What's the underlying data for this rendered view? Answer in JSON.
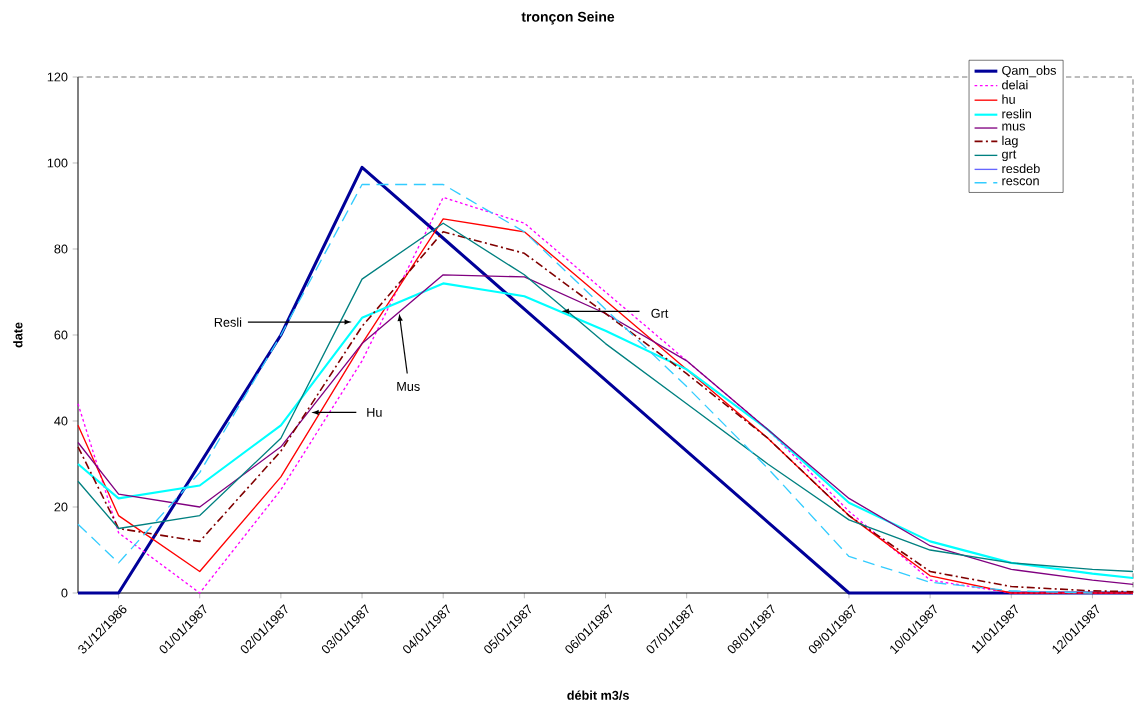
{
  "chart_data": {
    "type": "line",
    "title": "tronçon Seine",
    "xlabel": "débit m3/s",
    "ylabel": "date",
    "x": [
      "1986-12-30T12:00",
      "1986-12-31",
      "1987-01-01",
      "1987-01-02",
      "1987-01-03",
      "1987-01-04",
      "1987-01-05",
      "1987-01-06",
      "1987-01-07",
      "1987-01-08",
      "1987-01-09",
      "1987-01-10",
      "1987-01-11",
      "1987-01-12",
      "1987-01-12T12:00"
    ],
    "xlim": [
      "1986-12-30T12:00",
      "1987-01-12T12:00"
    ],
    "xticks": [
      {
        "value": "1986-12-31",
        "label": "31/12/1986"
      },
      {
        "value": "1987-01-01",
        "label": "01/01/1987"
      },
      {
        "value": "1987-01-02",
        "label": "02/01/1987"
      },
      {
        "value": "1987-01-03",
        "label": "03/01/1987"
      },
      {
        "value": "1987-01-04",
        "label": "04/01/1987"
      },
      {
        "value": "1987-01-05",
        "label": "05/01/1987"
      },
      {
        "value": "1987-01-06",
        "label": "06/01/1987"
      },
      {
        "value": "1987-01-07",
        "label": "07/01/1987"
      },
      {
        "value": "1987-01-08",
        "label": "08/01/1987"
      },
      {
        "value": "1987-01-09",
        "label": "09/01/1987"
      },
      {
        "value": "1987-01-10",
        "label": "10/01/1987"
      },
      {
        "value": "1987-01-11",
        "label": "11/01/1987"
      },
      {
        "value": "1987-01-12",
        "label": "12/01/1987"
      }
    ],
    "ylim": [
      0,
      120
    ],
    "yticks": [
      0,
      20,
      40,
      60,
      80,
      100,
      120
    ],
    "legend": "top right",
    "series": [
      {
        "name": "Qam_obs",
        "color": "#000099",
        "line_style": "solid",
        "values": [
          0,
          0,
          30,
          60,
          99,
          82.5,
          66,
          49.5,
          33,
          16.5,
          0,
          0,
          0,
          0,
          0
        ]
      },
      {
        "name": "delai",
        "color": "#ff00ff",
        "line_style": "dotted",
        "values": [
          44,
          14,
          0,
          24,
          54,
          92,
          86,
          70,
          54,
          38,
          19,
          3,
          0,
          0,
          0
        ]
      },
      {
        "name": "hu",
        "color": "#ff0000",
        "line_style": "solid",
        "values": [
          39,
          18,
          5,
          27,
          58,
          87,
          84,
          68,
          52,
          36,
          18,
          4,
          0,
          0,
          0
        ]
      },
      {
        "name": "reslin",
        "color": "#00ffff",
        "line_style": "solid",
        "values": [
          30,
          22,
          25,
          39,
          64,
          72,
          69,
          61,
          52,
          38,
          21,
          12,
          7,
          4.5,
          3.5
        ]
      },
      {
        "name": "mus",
        "color": "#800080",
        "line_style": "solid",
        "values": [
          35,
          23,
          20,
          34,
          58,
          74,
          73.5,
          65,
          54,
          38,
          22,
          11,
          5.5,
          3,
          2
        ]
      },
      {
        "name": "lag",
        "color": "#800000",
        "line_style": "dashdot",
        "values": [
          34,
          15,
          12,
          33,
          62,
          84,
          79,
          65,
          51,
          36,
          18,
          5,
          1.5,
          0.5,
          0.3
        ]
      },
      {
        "name": "grt",
        "color": "#008080",
        "line_style": "solid",
        "values": [
          26,
          15,
          18,
          36,
          73,
          86,
          74,
          58,
          44,
          30,
          17,
          10,
          7,
          5.5,
          5
        ]
      },
      {
        "name": "resdeb",
        "color": "#6666ff",
        "line_style": "solid",
        "values": [
          null,
          null,
          null,
          null,
          null,
          null,
          null,
          null,
          null,
          null,
          null,
          null,
          null,
          null,
          null
        ]
      },
      {
        "name": "rescon",
        "color": "#33ccff",
        "line_style": "dashed",
        "values": [
          16,
          7,
          28,
          60,
          95,
          95,
          84,
          66,
          48,
          29,
          8.5,
          2.5,
          0.5,
          0,
          null
        ]
      }
    ],
    "annotations": [
      {
        "text": "Resli",
        "x": "1987-01-02T21:00",
        "y": 63
      },
      {
        "text": "Mus",
        "x": "1987-01-03T11:00",
        "y": 65
      },
      {
        "text": "Hu",
        "x": "1987-01-02T09:00",
        "y": 42
      },
      {
        "text": "Grt",
        "x": "1987-01-05T11:00",
        "y": 65.5
      }
    ]
  }
}
